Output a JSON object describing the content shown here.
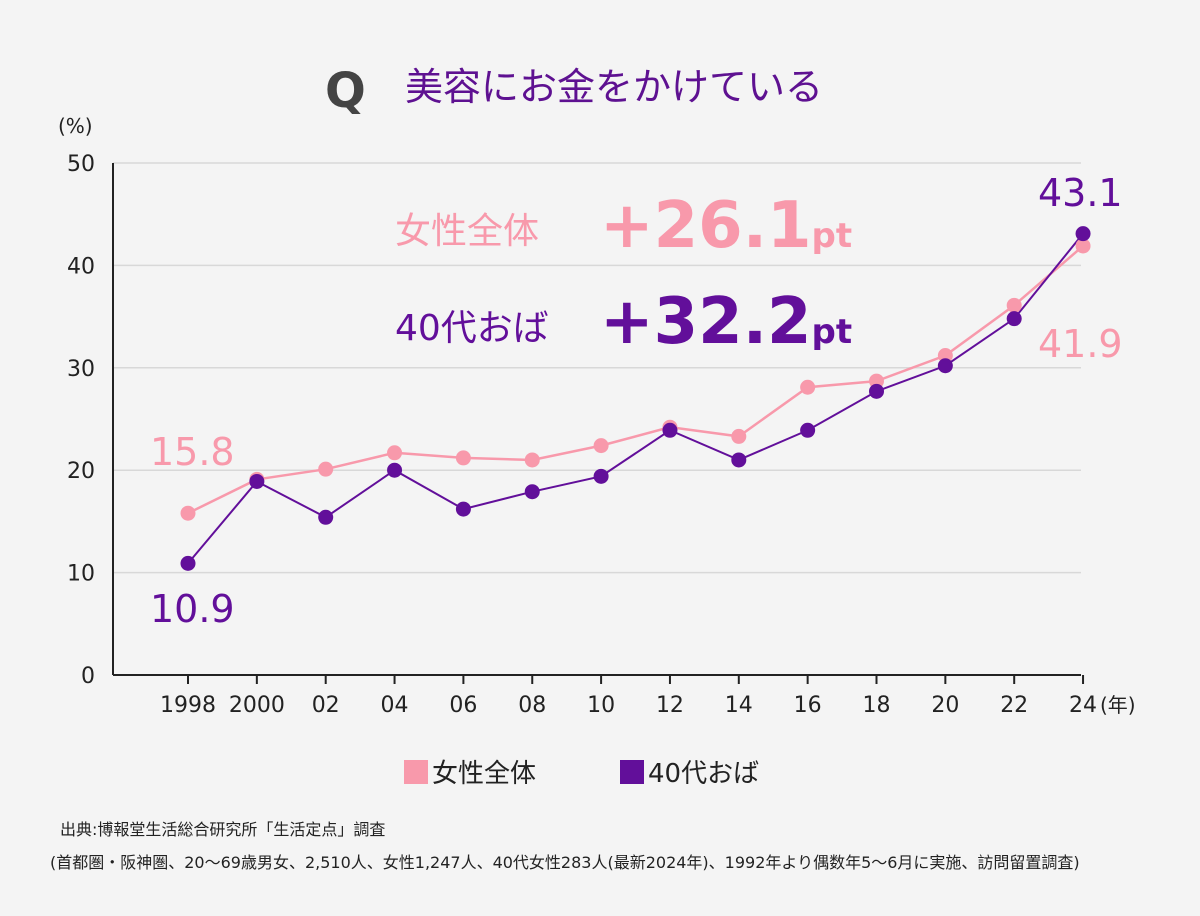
{
  "q_mark": "Q",
  "title": "美容にお金をかけている",
  "unit_y": "(%)",
  "unit_x": "(年)",
  "colors": {
    "women_all": "#f899ab",
    "forties": "#620f9a",
    "title": "#5e1191"
  },
  "callouts": {
    "women_all": {
      "label": "女性全体",
      "value": "+26.1",
      "suffix": "pt"
    },
    "forties": {
      "label": "40代おば",
      "value": "+32.2",
      "suffix": "pt"
    }
  },
  "end_labels": {
    "women_all_start": "15.8",
    "forties_start": "10.9",
    "forties_end": "43.1",
    "women_all_end": "41.9"
  },
  "legend": [
    "女性全体",
    "40代おば"
  ],
  "source": {
    "line1": "出典:博報堂生活総合研究所「生活定点」調査",
    "line2": "(首都圏・阪神圏、20〜69歳男女、2,510人、女性1,247人、40代女性283人(最新2024年)、1992年より偶数年5〜6月に実施、訪問留置調査)"
  },
  "chart_data": {
    "type": "line",
    "x": [
      1998,
      2000,
      2002,
      2004,
      2006,
      2008,
      2010,
      2012,
      2014,
      2016,
      2018,
      2020,
      2022,
      2024
    ],
    "x_tick_labels": [
      "1998",
      "2000",
      "02",
      "04",
      "06",
      "08",
      "10",
      "12",
      "14",
      "16",
      "18",
      "20",
      "22",
      "24"
    ],
    "y_ticks": [
      "0",
      "10",
      "20",
      "30",
      "40",
      "50"
    ],
    "ylim": [
      0,
      50
    ],
    "grid": true,
    "series": [
      {
        "name": "女性全体",
        "values": [
          15.8,
          19.1,
          20.1,
          21.7,
          21.2,
          21.0,
          22.4,
          24.2,
          23.3,
          28.1,
          28.7,
          31.2,
          36.1,
          41.9
        ]
      },
      {
        "name": "40代おば",
        "values": [
          10.9,
          18.9,
          15.4,
          20.0,
          16.2,
          17.9,
          19.4,
          23.9,
          21.0,
          23.9,
          27.7,
          30.2,
          34.8,
          43.1
        ]
      }
    ],
    "legend_position": "bottom-center"
  }
}
